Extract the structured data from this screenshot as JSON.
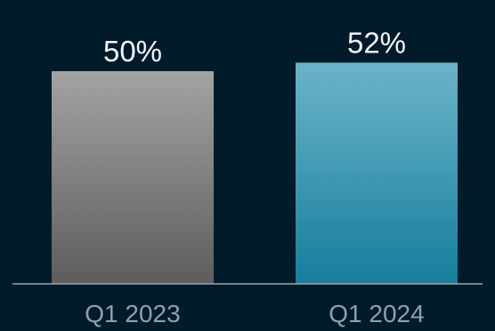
{
  "colors": {
    "background": "#011b2b",
    "axis": "#9aa7b0",
    "data_label": "#f2f4f6",
    "tick_label": "#8fa0ad",
    "bar_2023_top": "#a3a3a3",
    "bar_2023_bottom": "#5d5d5d",
    "bar_2024_top": "#6bb3c8",
    "bar_2024_bottom": "#157e9c"
  },
  "chart_data": {
    "type": "bar",
    "categories": [
      "Q1 2023",
      "Q1 2024"
    ],
    "values": [
      50,
      52
    ],
    "data_labels": [
      "50%",
      "52%"
    ],
    "title": "",
    "xlabel": "",
    "ylabel": "",
    "ylim": [
      0,
      55
    ],
    "grid": false,
    "legend": "none"
  }
}
